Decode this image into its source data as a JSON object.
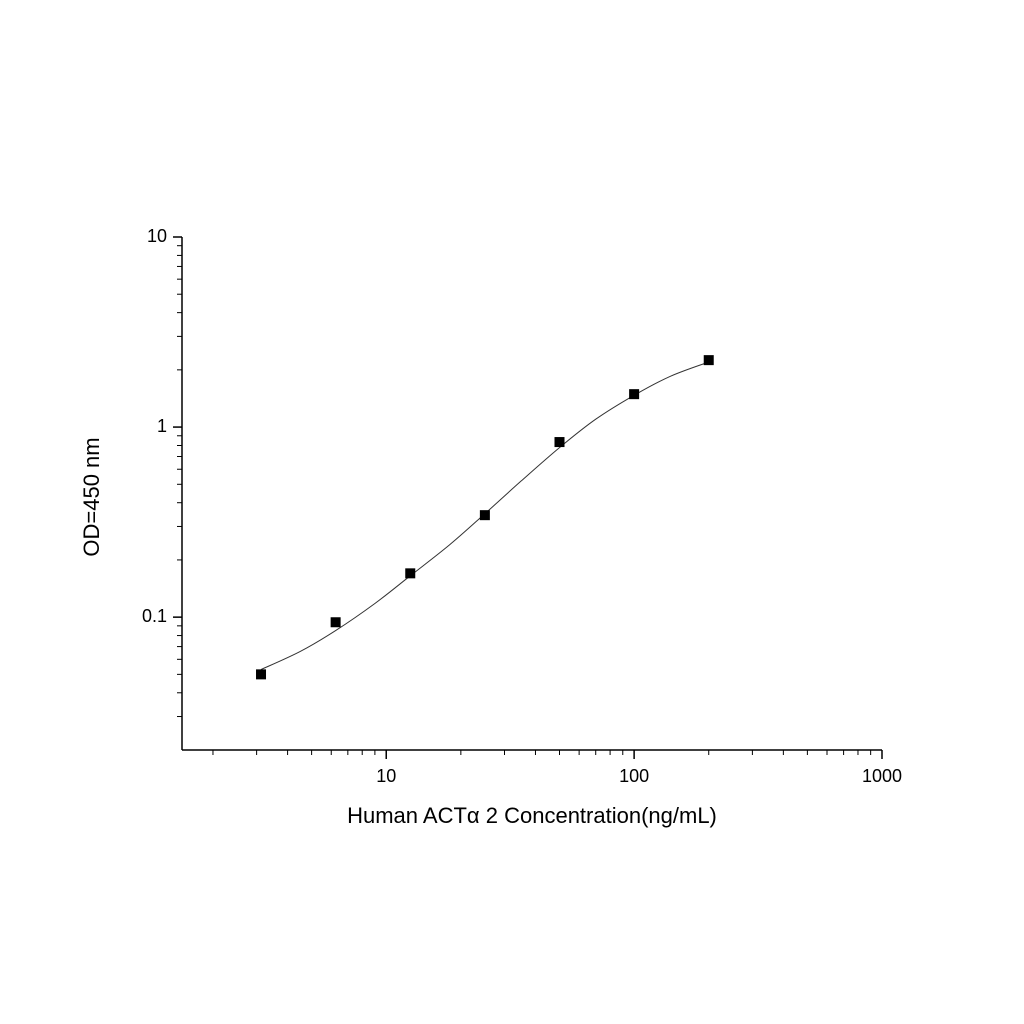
{
  "chart_data": {
    "type": "scatter",
    "x_label": "Human ACTα 2 Concentration(ng/mL)",
    "y_label": "OD=450 nm",
    "x": [
      3.125,
      6.25,
      12.5,
      25,
      50,
      100,
      200
    ],
    "values": [
      0.05,
      0.094,
      0.17,
      0.344,
      0.834,
      1.49,
      2.25
    ],
    "color": "#000000",
    "fit": {
      "x": [
        3.125,
        4.5,
        6.25,
        9,
        12.5,
        18,
        25,
        35,
        50,
        70,
        100,
        140,
        200
      ],
      "values": [
        0.053,
        0.066,
        0.085,
        0.118,
        0.165,
        0.24,
        0.35,
        0.52,
        0.78,
        1.1,
        1.47,
        1.85,
        2.2
      ],
      "color": "#333333"
    },
    "xscale": "log",
    "yscale": "log",
    "xlim": [
      1.5,
      1000
    ],
    "ylim": [
      0.02,
      10
    ],
    "xticks": [
      10,
      100,
      1000
    ],
    "yticks": [
      0.1,
      1,
      10
    ],
    "grid": false
  }
}
